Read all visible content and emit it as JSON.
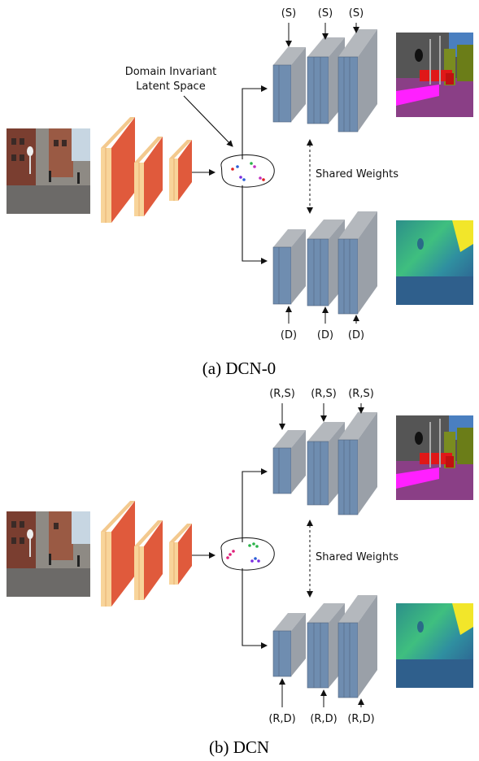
{
  "panels": [
    {
      "id": "a",
      "caption": "(a) DCN-0",
      "latent_label_line1": "Domain Invariant",
      "latent_label_line2": "Latent Space",
      "shared_label": "Shared Weights",
      "top_labels": [
        "(S)",
        "(S)",
        "(S)"
      ],
      "bottom_labels": [
        "(D)",
        "(D)",
        "(D)"
      ],
      "latent_dot_colors": [
        "#e02020",
        "#2a5fd6",
        "#2bb34a",
        "#c030c0",
        "#7a2be0"
      ]
    },
    {
      "id": "b",
      "caption": "(b) DCN",
      "shared_label": "Shared Weights",
      "top_labels": [
        "(R,S)",
        "(R,S)",
        "(R,S)"
      ],
      "bottom_labels": [
        "(R,D)",
        "(R,D)",
        "(R,D)"
      ],
      "latent_dot_colors": [
        "#e0207a",
        "#2bb34a",
        "#2a5fd6",
        "#7a2be0"
      ]
    }
  ],
  "colors": {
    "encoder_face": "#e05a3c",
    "encoder_side": "#f8d49a",
    "decoder_face": "#6f8db0",
    "decoder_side": "#9aa0a8"
  }
}
